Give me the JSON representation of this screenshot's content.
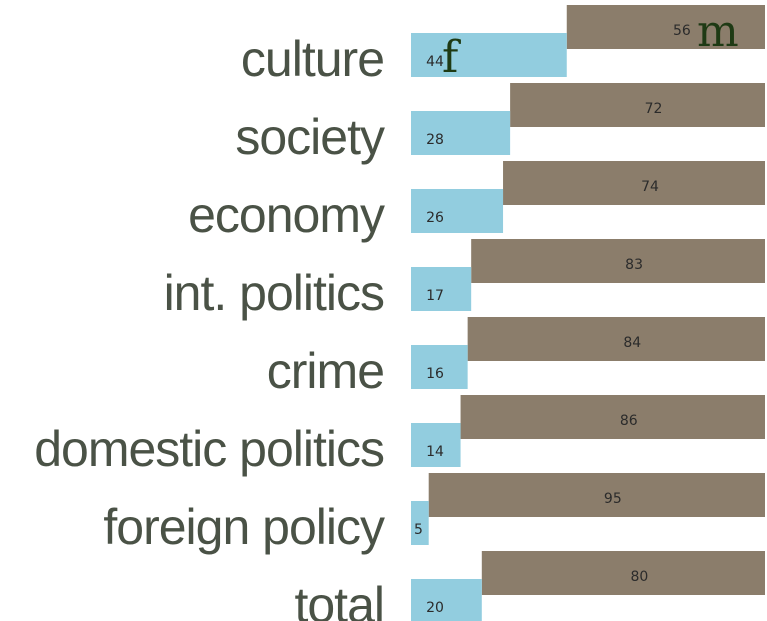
{
  "chart_data": {
    "type": "bar",
    "orientation": "horizontal",
    "stacked": true,
    "categories": [
      "culture",
      "society",
      "economy",
      "int. politics",
      "crime",
      "domestic politics",
      "foreign policy",
      "total"
    ],
    "series": [
      {
        "name": "f",
        "values": [
          44,
          28,
          26,
          17,
          16,
          14,
          5,
          20
        ],
        "color": "#92cddf"
      },
      {
        "name": "m",
        "values": [
          56,
          72,
          74,
          83,
          84,
          86,
          95,
          80
        ],
        "color": "#8b7d6b"
      }
    ],
    "xlim": [
      0,
      100
    ],
    "grid": false,
    "legend": "inline"
  }
}
